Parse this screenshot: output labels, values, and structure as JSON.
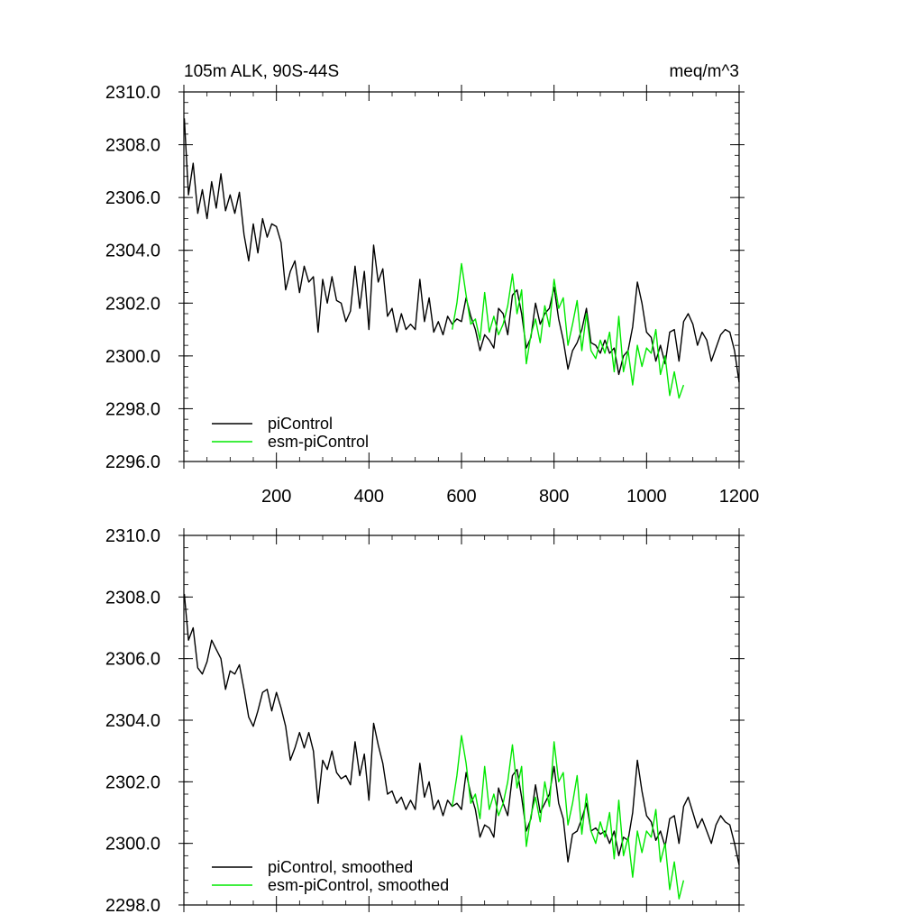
{
  "chart_data": [
    {
      "type": "line",
      "title": "105m ALK, 90S-44S",
      "units": "meq/m^3",
      "xlabel": "",
      "ylabel": "",
      "xlim": [
        0,
        1200
      ],
      "ylim": [
        2296.0,
        2310.0
      ],
      "xticks": [
        "200",
        "400",
        "600",
        "800",
        "1000",
        "1200"
      ],
      "yticks": [
        "2296.0",
        "2298.0",
        "2300.0",
        "2302.0",
        "2304.0",
        "2306.0",
        "2308.0",
        "2310.0"
      ],
      "legend_position": "bottom-left",
      "series": [
        {
          "name": "piControl",
          "color": "#000000",
          "x": [
            1,
            10,
            20,
            30,
            40,
            50,
            60,
            70,
            80,
            90,
            100,
            110,
            120,
            130,
            140,
            150,
            160,
            170,
            180,
            190,
            200,
            210,
            220,
            230,
            240,
            250,
            260,
            270,
            280,
            290,
            300,
            310,
            320,
            330,
            340,
            350,
            360,
            370,
            380,
            390,
            400,
            410,
            420,
            430,
            440,
            450,
            460,
            470,
            480,
            490,
            500,
            510,
            520,
            530,
            540,
            550,
            560,
            570,
            580,
            590,
            600,
            610,
            620,
            630,
            640,
            650,
            660,
            670,
            680,
            690,
            700,
            710,
            720,
            730,
            740,
            750,
            760,
            770,
            780,
            790,
            800,
            810,
            820,
            830,
            840,
            850,
            860,
            870,
            880,
            890,
            900,
            910,
            920,
            930,
            940,
            950,
            960,
            970,
            980,
            990,
            1000,
            1010,
            1020,
            1030,
            1040,
            1050,
            1060,
            1070,
            1080,
            1090,
            1100,
            1110,
            1120,
            1130,
            1140,
            1150,
            1160,
            1170,
            1180,
            1190,
            1200
          ],
          "values": [
            2309.0,
            2306.1,
            2307.3,
            2305.4,
            2306.3,
            2305.2,
            2306.6,
            2305.6,
            2306.9,
            2305.5,
            2306.1,
            2305.4,
            2306.2,
            2304.6,
            2303.6,
            2305.0,
            2303.9,
            2305.2,
            2304.5,
            2305.0,
            2304.9,
            2304.3,
            2302.5,
            2303.2,
            2303.6,
            2302.4,
            2303.4,
            2302.8,
            2303.0,
            2300.9,
            2302.9,
            2302.0,
            2303.0,
            2302.1,
            2302.0,
            2301.3,
            2301.7,
            2303.4,
            2301.8,
            2303.2,
            2301.0,
            2304.2,
            2302.8,
            2303.3,
            2301.5,
            2301.8,
            2300.9,
            2301.6,
            2301.0,
            2301.2,
            2301.0,
            2302.9,
            2301.3,
            2302.2,
            2300.9,
            2301.3,
            2300.8,
            2301.5,
            2301.2,
            2301.4,
            2301.3,
            2302.2,
            2301.5,
            2301.0,
            2300.2,
            2300.8,
            2300.6,
            2300.3,
            2301.8,
            2301.6,
            2300.8,
            2302.3,
            2302.5,
            2301.6,
            2300.3,
            2300.7,
            2302.0,
            2301.2,
            2301.6,
            2301.8,
            2302.6,
            2301.4,
            2300.6,
            2299.5,
            2300.2,
            2300.5,
            2301.0,
            2301.8,
            2300.5,
            2300.4,
            2300.1,
            2300.6,
            2300.1,
            2300.3,
            2299.3,
            2300.0,
            2300.2,
            2301.1,
            2302.8,
            2302.0,
            2300.9,
            2300.7,
            2299.8,
            2300.4,
            2299.7,
            2300.9,
            2301.0,
            2299.8,
            2301.3,
            2301.6,
            2301.2,
            2300.4,
            2300.9,
            2300.6,
            2299.8,
            2300.3,
            2300.8,
            2301.0,
            2300.9,
            2300.2,
            2299.0
          ]
        },
        {
          "name": "esm-piControl",
          "color": "#00e800",
          "x": [
            580,
            590,
            600,
            610,
            620,
            630,
            640,
            650,
            660,
            670,
            680,
            690,
            700,
            710,
            720,
            730,
            740,
            750,
            760,
            770,
            780,
            790,
            800,
            810,
            820,
            830,
            840,
            850,
            860,
            870,
            880,
            890,
            900,
            910,
            920,
            930,
            940,
            950,
            960,
            970,
            980,
            990,
            1000,
            1010,
            1020,
            1030,
            1040,
            1050,
            1060,
            1070,
            1080
          ],
          "values": [
            2301.0,
            2302.0,
            2303.5,
            2302.3,
            2301.2,
            2301.4,
            2300.6,
            2302.4,
            2300.9,
            2301.5,
            2300.8,
            2301.2,
            2301.9,
            2303.1,
            2301.6,
            2302.5,
            2299.7,
            2300.8,
            2301.4,
            2300.5,
            2301.9,
            2301.1,
            2302.9,
            2301.8,
            2302.2,
            2300.4,
            2301.2,
            2302.1,
            2300.2,
            2301.6,
            2300.2,
            2299.9,
            2300.6,
            2300.1,
            2300.9,
            2299.4,
            2301.5,
            2299.4,
            2300.2,
            2298.9,
            2300.4,
            2299.6,
            2300.3,
            2300.1,
            2301.0,
            2299.3,
            2300.0,
            2298.5,
            2299.4,
            2298.4,
            2298.9
          ]
        }
      ]
    },
    {
      "type": "line",
      "title": "",
      "xlabel": "",
      "ylabel": "",
      "xlim": [
        0,
        1200
      ],
      "ylim": [
        2298.0,
        2310.0
      ],
      "yticks": [
        "2298.0",
        "2300.0",
        "2302.0",
        "2304.0",
        "2306.0",
        "2308.0",
        "2310.0"
      ],
      "legend_position": "bottom-left",
      "series": [
        {
          "name": "piControl, smoothed",
          "color": "#000000",
          "x": [
            1,
            10,
            20,
            30,
            40,
            50,
            60,
            70,
            80,
            90,
            100,
            110,
            120,
            130,
            140,
            150,
            160,
            170,
            180,
            190,
            200,
            210,
            220,
            230,
            240,
            250,
            260,
            270,
            280,
            290,
            300,
            310,
            320,
            330,
            340,
            350,
            360,
            370,
            380,
            390,
            400,
            410,
            420,
            430,
            440,
            450,
            460,
            470,
            480,
            490,
            500,
            510,
            520,
            530,
            540,
            550,
            560,
            570,
            580,
            590,
            600,
            610,
            620,
            630,
            640,
            650,
            660,
            670,
            680,
            690,
            700,
            710,
            720,
            730,
            740,
            750,
            760,
            770,
            780,
            790,
            800,
            810,
            820,
            830,
            840,
            850,
            860,
            870,
            880,
            890,
            900,
            910,
            920,
            930,
            940,
            950,
            960,
            970,
            980,
            990,
            1000,
            1010,
            1020,
            1030,
            1040,
            1050,
            1060,
            1070,
            1080,
            1090,
            1100,
            1110,
            1120,
            1130,
            1140,
            1150,
            1160,
            1170,
            1180,
            1190,
            1200
          ],
          "values": [
            2308.1,
            2306.6,
            2307.0,
            2305.7,
            2305.5,
            2305.9,
            2306.6,
            2306.3,
            2306.0,
            2305.0,
            2305.6,
            2305.5,
            2305.8,
            2305.0,
            2304.1,
            2303.8,
            2304.3,
            2304.9,
            2305.0,
            2304.3,
            2304.9,
            2304.4,
            2303.8,
            2302.7,
            2303.1,
            2303.6,
            2303.1,
            2303.6,
            2303.0,
            2301.3,
            2302.7,
            2302.4,
            2303.0,
            2302.3,
            2302.1,
            2302.2,
            2301.9,
            2303.3,
            2302.2,
            2302.9,
            2301.4,
            2303.9,
            2303.2,
            2302.6,
            2301.6,
            2301.7,
            2301.3,
            2301.5,
            2301.1,
            2301.4,
            2301.1,
            2302.6,
            2301.5,
            2302.0,
            2301.1,
            2301.4,
            2300.9,
            2301.4,
            2301.2,
            2301.3,
            2301.1,
            2302.3,
            2301.6,
            2301.1,
            2300.2,
            2300.6,
            2300.5,
            2300.2,
            2301.8,
            2301.3,
            2300.9,
            2302.2,
            2302.4,
            2301.5,
            2300.4,
            2300.8,
            2301.9,
            2301.0,
            2301.3,
            2301.6,
            2302.5,
            2301.3,
            2300.8,
            2299.4,
            2300.3,
            2300.4,
            2300.8,
            2301.3,
            2300.4,
            2300.5,
            2300.3,
            2300.4,
            2300.0,
            2300.4,
            2299.6,
            2300.2,
            2300.1,
            2301.0,
            2302.7,
            2301.7,
            2300.9,
            2300.7,
            2300.1,
            2300.4,
            2299.9,
            2300.8,
            2300.9,
            2300.0,
            2301.2,
            2301.5,
            2301.0,
            2300.5,
            2300.8,
            2300.4,
            2300.0,
            2300.6,
            2300.9,
            2300.7,
            2300.6,
            2300.0,
            2299.3
          ]
        },
        {
          "name": "esm-piControl, smoothed",
          "color": "#00e800",
          "x": [
            580,
            590,
            600,
            610,
            620,
            630,
            640,
            650,
            660,
            670,
            680,
            690,
            700,
            710,
            720,
            730,
            740,
            750,
            760,
            770,
            780,
            790,
            800,
            810,
            820,
            830,
            840,
            850,
            860,
            870,
            880,
            890,
            900,
            910,
            920,
            930,
            940,
            950,
            960,
            970,
            980,
            990,
            1000,
            1010,
            1020,
            1030,
            1040,
            1050,
            1060,
            1070,
            1080
          ],
          "values": [
            2301.2,
            2302.2,
            2303.5,
            2302.6,
            2301.3,
            2301.6,
            2300.8,
            2302.5,
            2301.1,
            2301.6,
            2300.9,
            2301.3,
            2302.0,
            2303.2,
            2301.8,
            2302.5,
            2299.9,
            2300.9,
            2301.5,
            2300.7,
            2302.0,
            2301.2,
            2303.3,
            2302.0,
            2302.3,
            2300.6,
            2301.3,
            2302.2,
            2300.3,
            2301.6,
            2300.4,
            2300.0,
            2300.7,
            2300.2,
            2301.0,
            2299.5,
            2301.4,
            2299.6,
            2300.2,
            2298.9,
            2300.4,
            2299.7,
            2300.4,
            2300.2,
            2301.1,
            2299.4,
            2300.0,
            2298.5,
            2299.4,
            2298.2,
            2298.8
          ]
        }
      ]
    }
  ]
}
